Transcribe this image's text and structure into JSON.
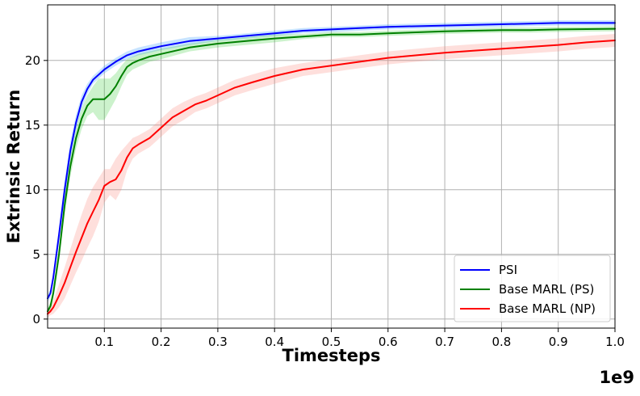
{
  "chart_data": {
    "type": "line",
    "xlabel": "Timesteps",
    "ylabel": "Extrinsic Return",
    "x_offset_label": "1e9",
    "xlim": [
      0.0,
      1.0
    ],
    "ylim": [
      -0.7,
      24.3
    ],
    "xticks": [
      "0.1",
      "0.2",
      "0.3",
      "0.4",
      "0.5",
      "0.6",
      "0.7",
      "0.8",
      "0.9",
      "1.0"
    ],
    "yticks": [
      "0",
      "5",
      "10",
      "15",
      "20"
    ],
    "grid": true,
    "legend_position": "bottom-right",
    "series": [
      {
        "name": "PSI",
        "color": "#0000ff",
        "band_color": "#1e90ff",
        "x": [
          0,
          0.005,
          0.01,
          0.02,
          0.03,
          0.04,
          0.05,
          0.06,
          0.07,
          0.08,
          0.09,
          0.1,
          0.12,
          0.14,
          0.16,
          0.18,
          0.2,
          0.25,
          0.3,
          0.35,
          0.4,
          0.45,
          0.5,
          0.55,
          0.6,
          0.7,
          0.8,
          0.9,
          1.0
        ],
        "y": [
          1.6,
          2.0,
          3.2,
          6.5,
          10.0,
          13.0,
          15.2,
          16.8,
          17.8,
          18.5,
          18.9,
          19.3,
          19.9,
          20.4,
          20.7,
          20.9,
          21.1,
          21.5,
          21.7,
          21.9,
          22.1,
          22.3,
          22.4,
          22.5,
          22.6,
          22.7,
          22.8,
          22.9,
          22.9
        ],
        "band": [
          0.3,
          0.3,
          0.4,
          0.6,
          0.7,
          0.7,
          0.6,
          0.5,
          0.4,
          0.3,
          0.3,
          0.3,
          0.3,
          0.3,
          0.3,
          0.3,
          0.3,
          0.3,
          0.2,
          0.2,
          0.2,
          0.2,
          0.2,
          0.2,
          0.2,
          0.2,
          0.2,
          0.2,
          0.2
        ]
      },
      {
        "name": "Base MARL (PS)",
        "color": "#008000",
        "band_color": "#32cd32",
        "x": [
          0,
          0.005,
          0.01,
          0.02,
          0.03,
          0.04,
          0.05,
          0.06,
          0.07,
          0.08,
          0.09,
          0.1,
          0.11,
          0.12,
          0.13,
          0.14,
          0.15,
          0.16,
          0.18,
          0.2,
          0.25,
          0.3,
          0.35,
          0.4,
          0.45,
          0.5,
          0.55,
          0.6,
          0.7,
          0.8,
          0.85,
          0.9,
          1.0
        ],
        "y": [
          0.6,
          1.0,
          2.0,
          5.0,
          8.8,
          11.8,
          14.0,
          15.5,
          16.5,
          17.0,
          17.0,
          17.0,
          17.4,
          18.0,
          18.8,
          19.5,
          19.8,
          20.0,
          20.3,
          20.5,
          21.0,
          21.3,
          21.5,
          21.7,
          21.85,
          22.0,
          22.0,
          22.1,
          22.25,
          22.35,
          22.35,
          22.4,
          22.45
        ],
        "band": [
          0.3,
          0.3,
          0.5,
          0.6,
          0.7,
          0.8,
          0.8,
          0.8,
          0.8,
          1.0,
          1.6,
          1.6,
          1.2,
          1.0,
          0.8,
          0.6,
          0.5,
          0.5,
          0.4,
          0.4,
          0.3,
          0.3,
          0.3,
          0.3,
          0.2,
          0.2,
          0.2,
          0.2,
          0.2,
          0.2,
          0.2,
          0.2,
          0.2
        ]
      },
      {
        "name": "Base MARL (NP)",
        "color": "#ff0000",
        "band_color": "#fa8072",
        "x": [
          0,
          0.005,
          0.01,
          0.02,
          0.03,
          0.04,
          0.05,
          0.06,
          0.07,
          0.08,
          0.09,
          0.1,
          0.11,
          0.12,
          0.13,
          0.14,
          0.15,
          0.16,
          0.18,
          0.2,
          0.22,
          0.24,
          0.26,
          0.28,
          0.3,
          0.33,
          0.36,
          0.4,
          0.45,
          0.5,
          0.55,
          0.6,
          0.65,
          0.7,
          0.75,
          0.8,
          0.85,
          0.9,
          0.95,
          1.0
        ],
        "y": [
          0.4,
          0.6,
          0.9,
          1.8,
          2.8,
          4.0,
          5.2,
          6.3,
          7.4,
          8.3,
          9.2,
          10.3,
          10.6,
          10.8,
          11.5,
          12.5,
          13.2,
          13.5,
          14.0,
          14.8,
          15.6,
          16.1,
          16.6,
          16.9,
          17.3,
          17.9,
          18.3,
          18.8,
          19.3,
          19.6,
          19.9,
          20.2,
          20.4,
          20.6,
          20.75,
          20.9,
          21.05,
          21.2,
          21.4,
          21.55
        ],
        "band": [
          0.3,
          0.3,
          0.5,
          0.9,
          1.2,
          1.4,
          1.6,
          1.8,
          1.9,
          1.9,
          1.7,
          1.3,
          1.0,
          1.6,
          1.5,
          1.0,
          0.8,
          0.7,
          0.7,
          0.7,
          0.7,
          0.7,
          0.6,
          0.6,
          0.6,
          0.6,
          0.6,
          0.6,
          0.5,
          0.5,
          0.5,
          0.5,
          0.5,
          0.5,
          0.5,
          0.5,
          0.5,
          0.5,
          0.5,
          0.5
        ]
      }
    ]
  }
}
